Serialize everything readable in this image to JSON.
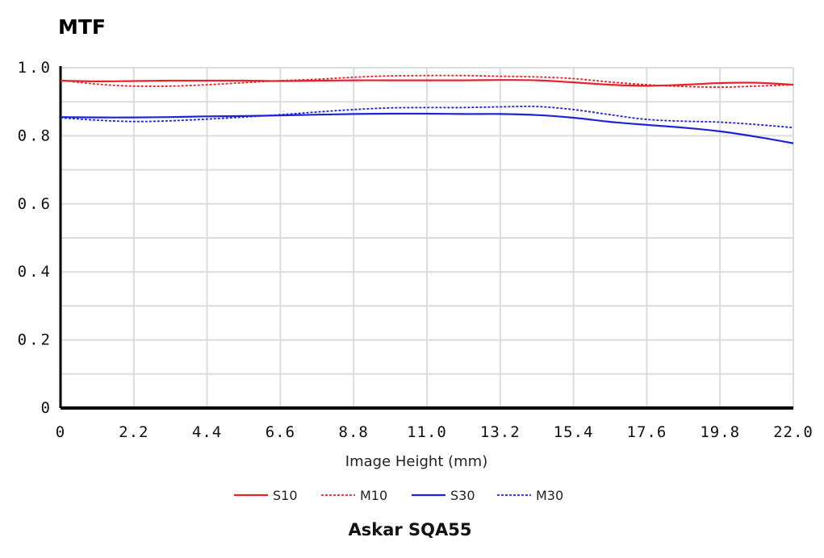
{
  "chart_data": {
    "type": "line",
    "title": "MTF",
    "subtitle": "Askar SQA55",
    "xlabel": "Image Height (mm)",
    "ylabel": "",
    "xlim": [
      0,
      22.0
    ],
    "ylim": [
      0,
      1.0
    ],
    "x_ticks": [
      "0",
      "2.2",
      "4.4",
      "6.6",
      "8.8",
      "11.0",
      "13.2",
      "15.4",
      "17.6",
      "19.8",
      "22.0"
    ],
    "x_tick_values": [
      0,
      2.2,
      4.4,
      6.6,
      8.8,
      11.0,
      13.2,
      15.4,
      17.6,
      19.8,
      22.0
    ],
    "y_ticks": [
      "0",
      "0.2",
      "0.4",
      "0.6",
      "0.8",
      "1.0"
    ],
    "y_tick_values": [
      0,
      0.2,
      0.4,
      0.6,
      0.8,
      1.0
    ],
    "grid": true,
    "legend_position": "bottom-center",
    "series": [
      {
        "name": "S10",
        "color": "#e8212b",
        "style": "solid",
        "x": [
          0,
          1.1,
          2.2,
          3.3,
          4.4,
          5.5,
          6.6,
          7.7,
          8.8,
          9.9,
          11.0,
          12.1,
          13.2,
          14.3,
          15.4,
          16.5,
          17.6,
          18.7,
          19.8,
          20.9,
          22.0
        ],
        "y": [
          0.962,
          0.96,
          0.961,
          0.962,
          0.962,
          0.962,
          0.961,
          0.962,
          0.963,
          0.963,
          0.963,
          0.963,
          0.964,
          0.963,
          0.957,
          0.95,
          0.947,
          0.95,
          0.955,
          0.956,
          0.95
        ]
      },
      {
        "name": "M10",
        "color": "#e8212b",
        "style": "dashed",
        "x": [
          0,
          1.1,
          2.2,
          3.3,
          4.4,
          5.5,
          6.6,
          7.7,
          8.8,
          9.9,
          11.0,
          12.1,
          13.2,
          14.3,
          15.4,
          16.5,
          17.6,
          18.7,
          19.8,
          20.9,
          22.0
        ],
        "y": [
          0.963,
          0.952,
          0.946,
          0.946,
          0.95,
          0.956,
          0.962,
          0.966,
          0.972,
          0.976,
          0.977,
          0.977,
          0.975,
          0.973,
          0.968,
          0.958,
          0.95,
          0.945,
          0.943,
          0.946,
          0.95
        ]
      },
      {
        "name": "S30",
        "color": "#1f23d6",
        "style": "solid",
        "x": [
          0,
          1.1,
          2.2,
          3.3,
          4.4,
          5.5,
          6.6,
          7.7,
          8.8,
          9.9,
          11.0,
          12.1,
          13.2,
          14.3,
          15.4,
          16.5,
          17.6,
          18.7,
          19.8,
          20.9,
          22.0
        ],
        "y": [
          0.855,
          0.854,
          0.854,
          0.855,
          0.857,
          0.858,
          0.86,
          0.862,
          0.864,
          0.865,
          0.865,
          0.864,
          0.864,
          0.861,
          0.853,
          0.841,
          0.832,
          0.824,
          0.813,
          0.797,
          0.778
        ]
      },
      {
        "name": "M30",
        "color": "#1f23d6",
        "style": "dashed",
        "x": [
          0,
          1.1,
          2.2,
          3.3,
          4.4,
          5.5,
          6.6,
          7.7,
          8.8,
          9.9,
          11.0,
          12.1,
          13.2,
          14.3,
          15.4,
          16.5,
          17.6,
          18.7,
          19.8,
          20.9,
          22.0
        ],
        "y": [
          0.853,
          0.846,
          0.842,
          0.844,
          0.849,
          0.855,
          0.862,
          0.87,
          0.877,
          0.882,
          0.883,
          0.883,
          0.885,
          0.886,
          0.877,
          0.862,
          0.848,
          0.843,
          0.84,
          0.833,
          0.824
        ]
      }
    ]
  }
}
